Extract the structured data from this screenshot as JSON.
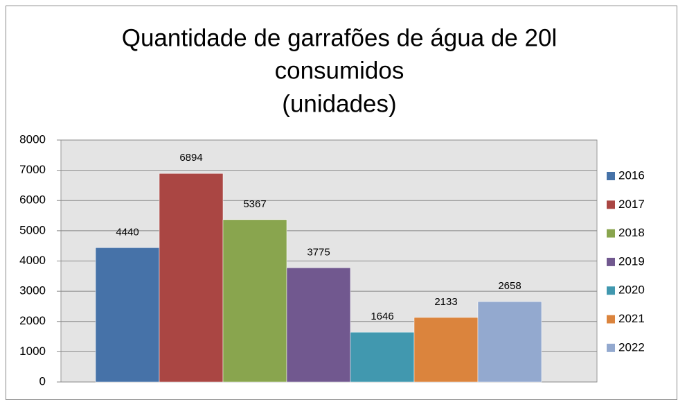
{
  "chart_data": {
    "type": "bar",
    "title": [
      "Quantidade de garrafões de água de 20l",
      "consumidos",
      "(unidades)"
    ],
    "series": [
      {
        "name": "2016",
        "color": "#4672a8",
        "values": [
          4440
        ]
      },
      {
        "name": "2017",
        "color": "#aa4643",
        "values": [
          6894
        ]
      },
      {
        "name": "2018",
        "color": "#89a54e",
        "values": [
          5367
        ]
      },
      {
        "name": "2019",
        "color": "#71588f",
        "values": [
          3775
        ]
      },
      {
        "name": "2020",
        "color": "#4198af",
        "values": [
          1646
        ]
      },
      {
        "name": "2021",
        "color": "#db843d",
        "values": [
          2133
        ]
      },
      {
        "name": "2022",
        "color": "#93a9cf",
        "values": [
          2658
        ]
      }
    ],
    "ylim": [
      0,
      8000
    ],
    "yticks": [
      0,
      1000,
      2000,
      3000,
      4000,
      5000,
      6000,
      7000,
      8000
    ],
    "grid": true,
    "legend": "right"
  }
}
